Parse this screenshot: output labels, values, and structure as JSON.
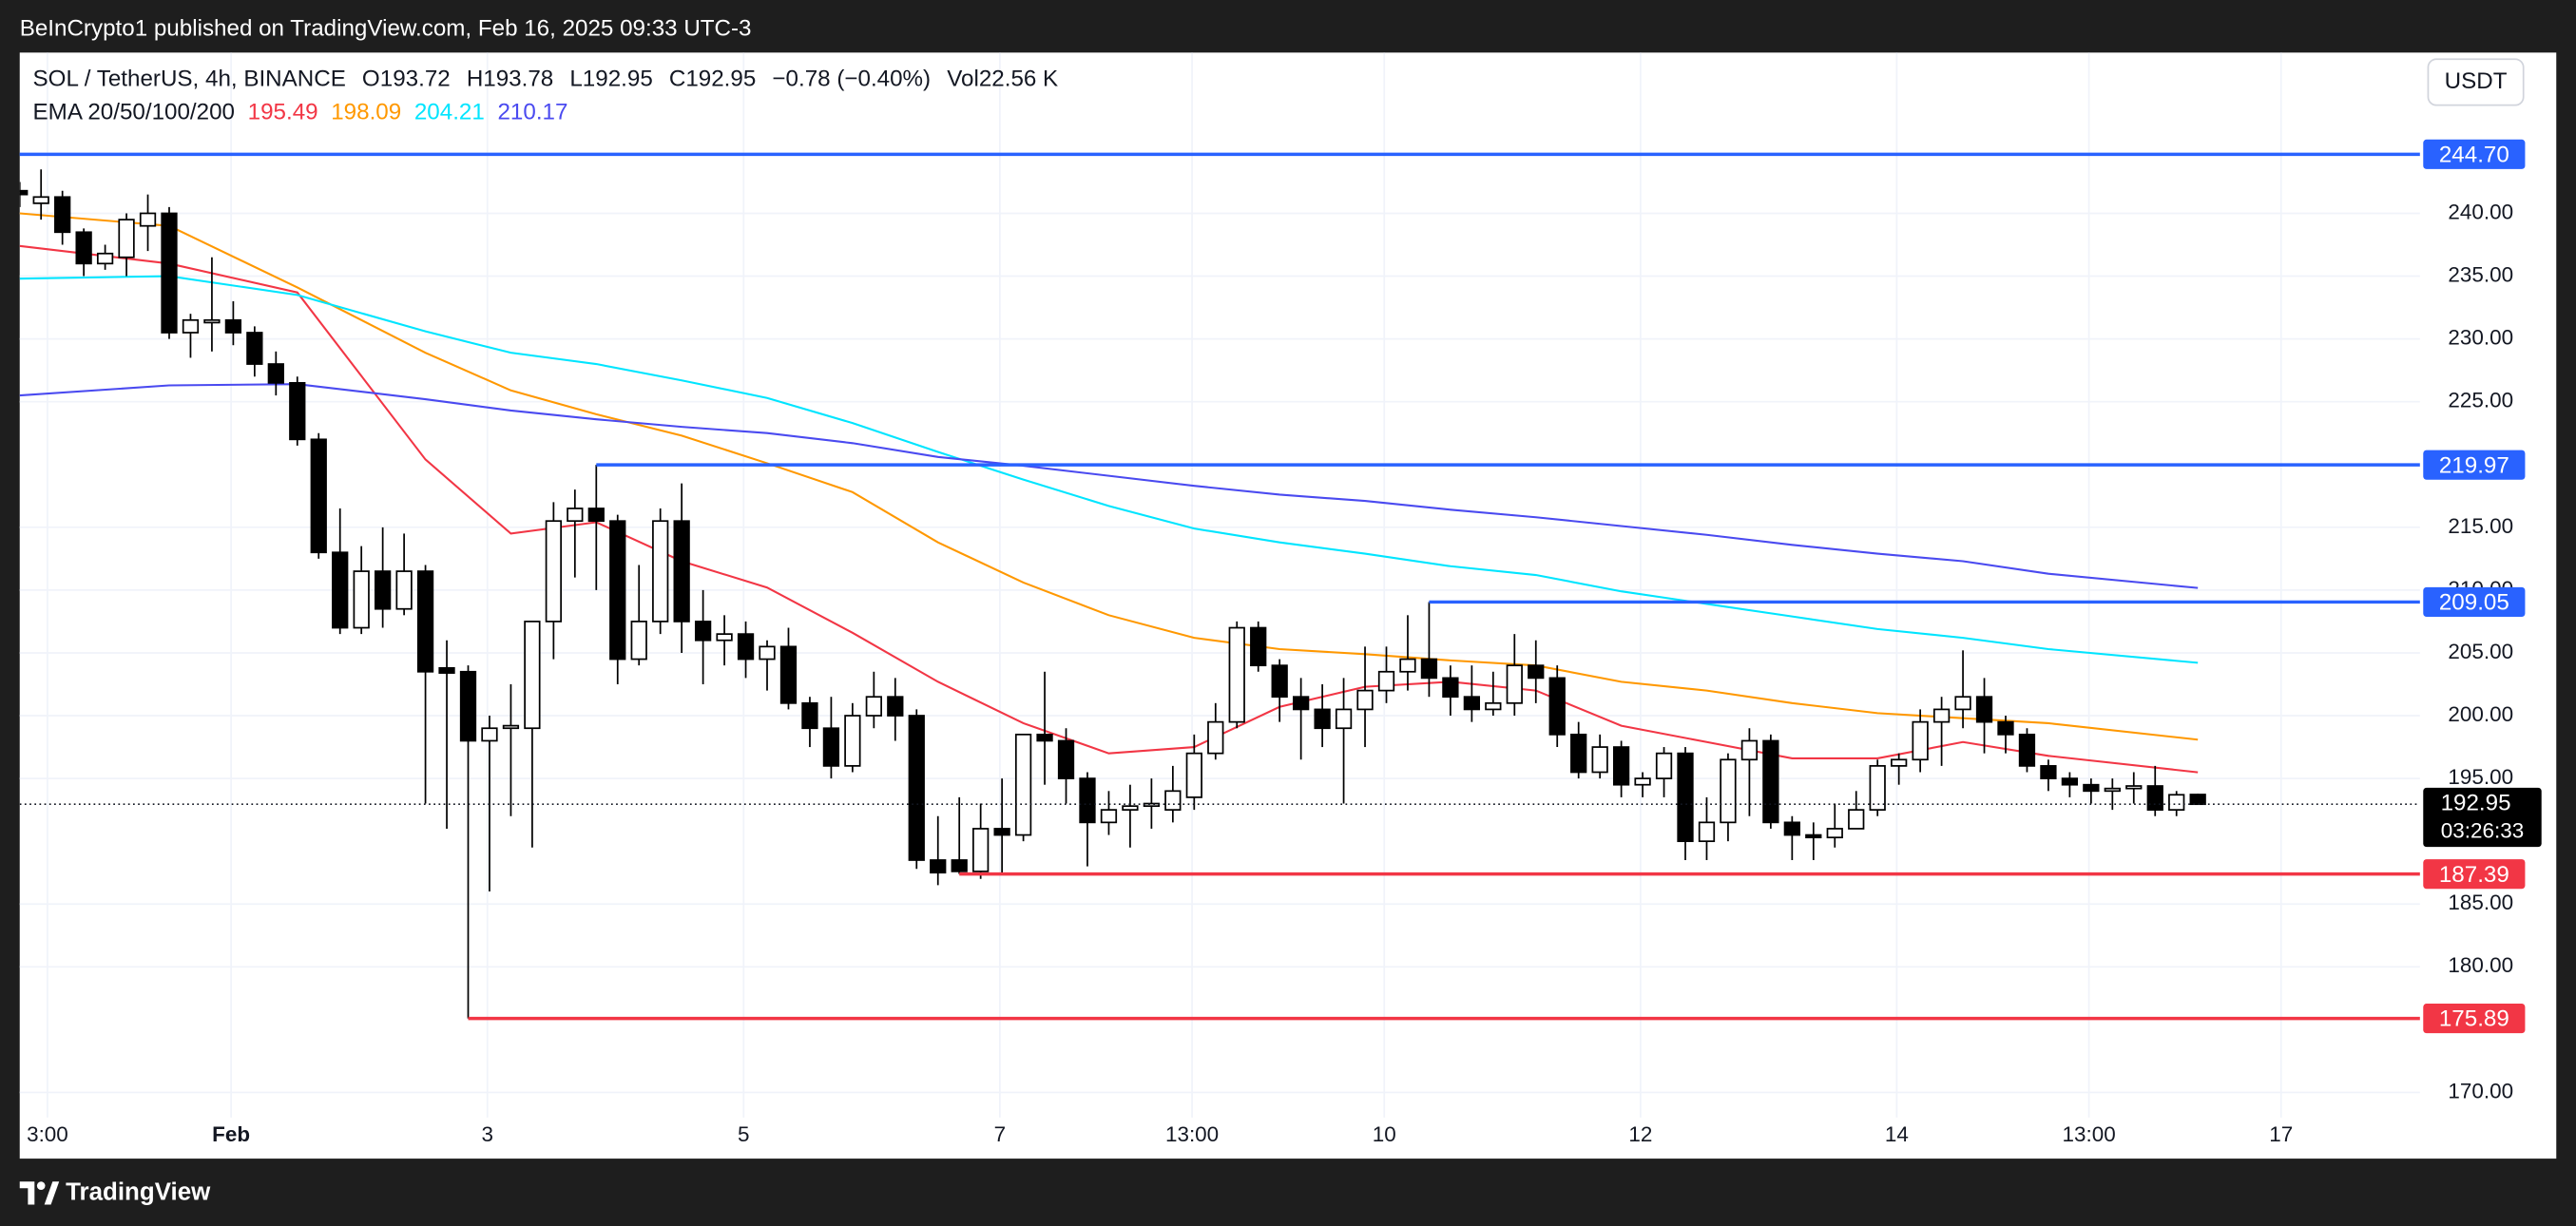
{
  "attribution": "BeInCrypto1 published on TradingView.com, Feb 16, 2025 09:33 UTC-3",
  "footer": "TradingView",
  "chart_data": {
    "type": "candlestick",
    "symbol": "SOL / TetherUS, 4h, BINANCE",
    "legend_letters": [
      "O",
      "H",
      "L",
      "C"
    ],
    "change": "−0.78 (−0.40%)",
    "volume_label": "Vol",
    "volume": "22.56 K",
    "currency": "USDT",
    "countdown": "03:26:33",
    "up_color": "#ffffff",
    "down_color": "#000000",
    "candles": {
      "open": [
        241.8,
        240.8,
        241.3,
        238.5,
        236,
        236.5,
        239,
        240,
        230.5,
        231.3,
        231.5,
        230.5,
        228,
        226.5,
        222,
        213,
        207,
        211.5,
        208.5,
        211.5,
        203.8,
        203.5,
        198,
        199,
        199,
        207.5,
        215.5,
        216.5,
        215.5,
        204.5,
        207.5,
        215.5,
        207.5,
        206,
        206.5,
        204.5,
        205.5,
        201,
        199,
        196,
        200,
        201.5,
        200,
        188.5,
        188.5,
        187.6,
        191,
        190.5,
        198.5,
        198,
        195,
        191.5,
        192.5,
        192.8,
        192.5,
        193.5,
        197,
        199.5,
        207,
        204,
        201.5,
        200.5,
        199,
        200.5,
        202,
        203.5,
        204.5,
        203,
        201.5,
        200.5,
        201,
        204,
        203,
        198.5,
        195.5,
        197.5,
        194.5,
        195,
        197,
        190,
        191.5,
        196.5,
        198,
        191.5,
        190.5,
        190.3,
        191,
        192.5,
        196,
        196.5,
        199.5,
        200.5,
        201.5,
        199.5,
        198.5,
        196,
        195,
        194.5,
        194,
        194.2,
        194.4,
        192.5,
        193.72
      ],
      "high": [
        242.5,
        243.5,
        241.8,
        238.8,
        237.5,
        240,
        241.5,
        240.5,
        232,
        236.5,
        233,
        231,
        229,
        227,
        222.5,
        216.5,
        213.5,
        215,
        214.5,
        212,
        206,
        204,
        200,
        202.5,
        207.5,
        217,
        218,
        219.97,
        216,
        212,
        216.5,
        218.5,
        210,
        208,
        207.5,
        206,
        207,
        201.5,
        201.5,
        201,
        203.5,
        203,
        200.5,
        192,
        193.5,
        193,
        195,
        198.5,
        203.5,
        199,
        195.5,
        194,
        194.5,
        195,
        196,
        198.5,
        201,
        207.5,
        207.5,
        204.5,
        203,
        202.5,
        203,
        205.5,
        205.5,
        208,
        209.05,
        204,
        204,
        203.5,
        206.5,
        206,
        204,
        199.5,
        198.5,
        198,
        195.5,
        197.5,
        197.5,
        193.5,
        197,
        199,
        198.5,
        192,
        191.5,
        193,
        194,
        196.5,
        197,
        200.5,
        201.5,
        205.2,
        203,
        200,
        199,
        196.5,
        195.5,
        195,
        195,
        195.5,
        196,
        194,
        193.78
      ],
      "low": [
        240.5,
        239.5,
        237.5,
        235,
        235.5,
        235,
        237,
        230,
        228.5,
        229,
        229.5,
        227,
        225.5,
        221.5,
        212.5,
        206.5,
        206.5,
        207,
        208,
        193,
        191,
        175.89,
        186,
        192,
        189.5,
        204.5,
        211,
        210,
        202.5,
        204,
        206.5,
        205,
        202.5,
        204,
        203,
        202,
        200.5,
        197.5,
        195,
        195.5,
        199,
        198,
        187.8,
        186.5,
        187.39,
        187,
        187.5,
        190,
        194.5,
        193,
        188,
        190.5,
        189.5,
        191,
        191.5,
        192.5,
        196.5,
        199,
        203.5,
        199.5,
        196.5,
        197.5,
        193,
        197.5,
        201,
        202,
        201.5,
        200,
        199.5,
        200,
        200,
        201,
        197.5,
        195,
        195,
        193.5,
        193.5,
        193.5,
        188.5,
        188.5,
        190,
        192,
        191,
        188.5,
        188.5,
        189.5,
        191,
        192,
        194.5,
        195.5,
        196,
        199,
        197,
        197,
        195.5,
        194,
        193.5,
        193,
        192.5,
        193,
        192,
        192,
        192.95
      ],
      "close": [
        241.5,
        241.3,
        238.5,
        236,
        236.8,
        239.5,
        240,
        230.5,
        231.5,
        231.5,
        230.5,
        228,
        226.5,
        222,
        213,
        207,
        211.5,
        208.5,
        211.5,
        203.5,
        203.4,
        198,
        199,
        199.2,
        207.5,
        215.5,
        216.5,
        215.5,
        204.5,
        207.5,
        215.5,
        207.5,
        206,
        206.5,
        204.5,
        205.5,
        201,
        199,
        196,
        200,
        201.5,
        200,
        188.5,
        187.5,
        187.6,
        191,
        190.5,
        198.5,
        198,
        195,
        191.5,
        192.5,
        192.8,
        193,
        194,
        197,
        199.5,
        207,
        204,
        201.5,
        200.5,
        199,
        200.5,
        202,
        203.5,
        204.5,
        203,
        201.5,
        200.5,
        201,
        204,
        203,
        198.5,
        195.5,
        197.5,
        194.5,
        195,
        197,
        190,
        191.5,
        196.5,
        198,
        191.5,
        190.5,
        190.3,
        191,
        192.5,
        196,
        196.5,
        199.5,
        200.5,
        201.5,
        199.5,
        198.5,
        196,
        195,
        194.5,
        194,
        194.2,
        194.4,
        192.5,
        193.7,
        192.95
      ]
    },
    "ema": {
      "name": "EMA 20/50/100/200",
      "x": [
        0,
        7,
        13,
        19,
        23,
        27,
        31,
        35,
        39,
        43,
        47,
        51,
        55,
        59,
        63,
        67,
        71,
        75,
        79,
        83,
        87,
        91,
        95,
        102
      ],
      "series": [
        {
          "color": "#f23645",
          "values": [
            237.4,
            236,
            233.7,
            220.4,
            214.5,
            215.4,
            212.3,
            210.2,
            206.6,
            202.7,
            199.4,
            197,
            197.5,
            200.7,
            202.3,
            202.7,
            202,
            199.2,
            197.9,
            196.6,
            196.6,
            197.9,
            196.8,
            195.49
          ]
        },
        {
          "color": "#ff9800",
          "values": [
            240,
            239,
            234.1,
            228.9,
            225.9,
            224,
            222.3,
            220.1,
            217.8,
            213.8,
            210.6,
            208,
            206.2,
            205.3,
            204.9,
            204.4,
            204,
            202.7,
            202,
            201,
            200.2,
            199.8,
            199.4,
            198.09
          ]
        },
        {
          "color": "#00e5ff",
          "values": [
            234.8,
            235,
            233.5,
            230.6,
            228.9,
            228,
            226.7,
            225.3,
            223.3,
            221,
            218.8,
            216.7,
            214.9,
            213.8,
            212.9,
            211.9,
            211.2,
            209.9,
            208.9,
            207.9,
            206.9,
            206.2,
            205.3,
            204.21
          ]
        },
        {
          "color": "#4a4af0",
          "values": [
            225.5,
            226.3,
            226.4,
            225.2,
            224.3,
            223.6,
            223,
            222.5,
            221.7,
            220.6,
            219.9,
            219.1,
            218.3,
            217.6,
            217.1,
            216.4,
            215.8,
            215.1,
            214.4,
            213.6,
            212.9,
            212.3,
            211.3,
            210.17
          ]
        }
      ]
    },
    "levels": [
      {
        "value": 244.7,
        "label": "244.70",
        "color": "#2962ff",
        "from": 0
      },
      {
        "value": 219.97,
        "label": "219.97",
        "color": "#2962ff",
        "from": 27
      },
      {
        "value": 209.05,
        "label": "209.05",
        "color": "#2962ff",
        "from": 66
      },
      {
        "value": 187.39,
        "label": "187.39",
        "color": "#f23645",
        "from": 44
      },
      {
        "value": 175.89,
        "label": "175.89",
        "color": "#f23645",
        "from": 21
      }
    ],
    "xlim": [
      0,
      112.4
    ],
    "ylim": [
      168.0,
      252.8
    ],
    "xticks": [
      {
        "value": 1.3,
        "label": "3:00"
      },
      {
        "value": 9.9,
        "label": "Feb"
      },
      {
        "value": 21.9,
        "label": "3"
      },
      {
        "value": 33.9,
        "label": "5"
      },
      {
        "value": 45.9,
        "label": "7"
      },
      {
        "value": 54.9,
        "label": "13:00"
      },
      {
        "value": 63.9,
        "label": "10"
      },
      {
        "value": 75.9,
        "label": "12"
      },
      {
        "value": 87.9,
        "label": "14"
      },
      {
        "value": 96.9,
        "label": "13:00"
      },
      {
        "value": 105.9,
        "label": "17"
      }
    ],
    "yticks": [
      {
        "value": 170,
        "label": "170.00"
      },
      {
        "value": 180,
        "label": "180.00"
      },
      {
        "value": 185,
        "label": "185.00"
      },
      {
        "value": 195,
        "label": "195.00"
      },
      {
        "value": 200,
        "label": "200.00"
      },
      {
        "value": 205,
        "label": "205.00"
      },
      {
        "value": 210,
        "label": "210.00"
      },
      {
        "value": 215,
        "label": "215.00"
      },
      {
        "value": 225,
        "label": "225.00"
      },
      {
        "value": 230,
        "label": "230.00"
      },
      {
        "value": 235,
        "label": "235.00"
      },
      {
        "value": 240,
        "label": "240.00"
      }
    ],
    "grid": true
  }
}
